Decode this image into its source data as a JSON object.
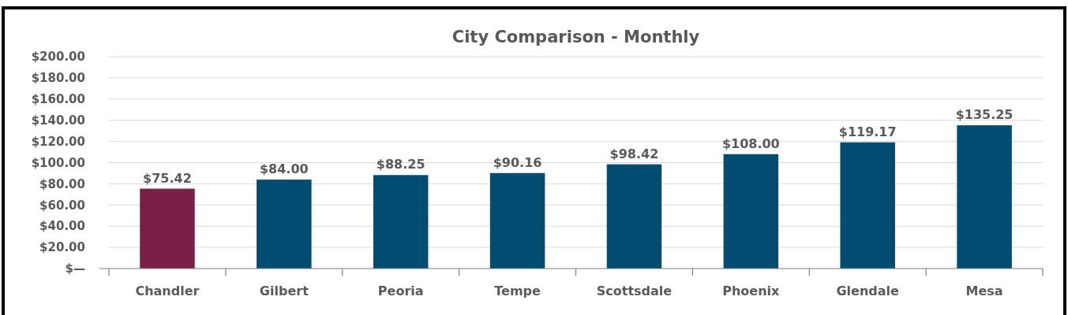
{
  "chart_data": {
    "type": "bar",
    "title": "City Comparison - Monthly",
    "categories": [
      "Chandler",
      "Gilbert",
      "Peoria",
      "Tempe",
      "Scottsdale",
      "Phoenix",
      "Glendale",
      "Mesa"
    ],
    "values": [
      75.42,
      84.0,
      88.25,
      90.16,
      98.42,
      108.0,
      119.17,
      135.25
    ],
    "colors": [
      "#7a2046",
      "#004d71",
      "#004d71",
      "#004d71",
      "#004d71",
      "#004d71",
      "#004d71",
      "#004d71"
    ],
    "value_labels": [
      "$75.42",
      "$84.00",
      "$88.25",
      "$90.16",
      "$98.42",
      "$108.00",
      "$119.17",
      "$135.25"
    ],
    "ylim": [
      0,
      200
    ],
    "yticks": [
      {
        "value": 0,
        "label": "$—"
      },
      {
        "value": 20,
        "label": "$20.00"
      },
      {
        "value": 40,
        "label": "$40.00"
      },
      {
        "value": 60,
        "label": "$60.00"
      },
      {
        "value": 80,
        "label": "$80.00"
      },
      {
        "value": 100,
        "label": "$100.00"
      },
      {
        "value": 120,
        "label": "$120.00"
      },
      {
        "value": 140,
        "label": "$140.00"
      },
      {
        "value": 160,
        "label": "$160.00"
      },
      {
        "value": 180,
        "label": "$180.00"
      },
      {
        "value": 200,
        "label": "$200.00"
      }
    ],
    "grid": "y"
  }
}
